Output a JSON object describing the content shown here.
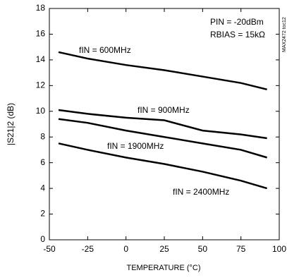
{
  "chart_data": {
    "type": "line",
    "x_label": "TEMPERATURE (°C)",
    "y_label": "|S21|2 (dB)",
    "annotations": [
      "PIN = -20dBm",
      "RBIAS = 15kΩ",
      "MAX2472 toc12"
    ],
    "x": [
      -44,
      -25,
      0,
      25,
      50,
      75,
      92
    ],
    "series": [
      {
        "name": "fIN = 600MHz",
        "color": "#000000",
        "values": [
          14.6,
          14.1,
          13.6,
          13.2,
          12.7,
          12.2,
          11.7
        ]
      },
      {
        "name": "fIN = 900MHz",
        "color": "#000000",
        "values": [
          10.1,
          9.8,
          9.5,
          9.3,
          8.5,
          8.2,
          7.9
        ]
      },
      {
        "name": "fIN = 1900MHz",
        "color": "#000000",
        "values": [
          9.4,
          9.1,
          8.5,
          8.0,
          7.5,
          7.0,
          6.4
        ]
      },
      {
        "name": "fIN = 2400MHz",
        "color": "#000000",
        "values": [
          7.5,
          7.0,
          6.4,
          5.9,
          5.3,
          4.6,
          4.0
        ]
      }
    ],
    "xlim": [
      -50,
      100
    ],
    "xticks": [
      -50,
      -25,
      0,
      25,
      50,
      75,
      100
    ],
    "ylim": [
      0,
      18
    ],
    "yticks": [
      0,
      2,
      4,
      6,
      8,
      10,
      12,
      14,
      16,
      18
    ],
    "grid": false
  }
}
